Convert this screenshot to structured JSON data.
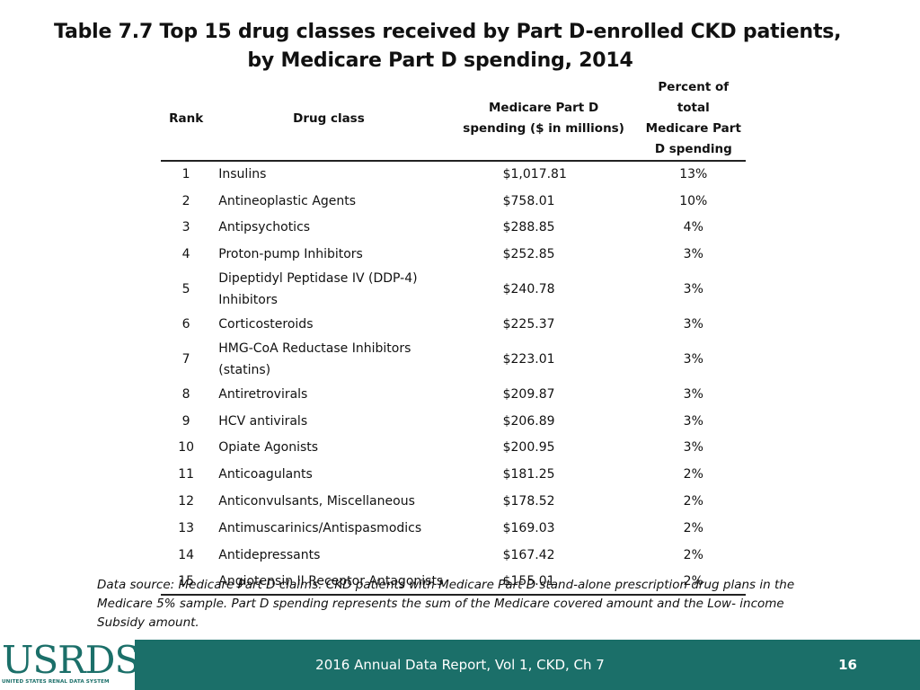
{
  "title": {
    "line1": "Table 7.7  Top 15 drug classes received by Part D-enrolled CKD patients,",
    "line2": "by Medicare Part D spending, 2014"
  },
  "table": {
    "headers": {
      "rank": "Rank",
      "drug_class": "Drug class",
      "spending_line1": "Medicare Part D",
      "spending_line2": "spending ($ in millions)",
      "percent_line1": "Percent of total",
      "percent_line2": "Medicare Part",
      "percent_line3": "D spending"
    },
    "rows": [
      {
        "rank": "1",
        "drug": "Insulins",
        "drug2": "",
        "spending": "$1,017.81",
        "percent": "13%"
      },
      {
        "rank": "2",
        "drug": "Antineoplastic Agents",
        "drug2": "",
        "spending": "$758.01",
        "percent": "10%"
      },
      {
        "rank": "3",
        "drug": "Antipsychotics",
        "drug2": "",
        "spending": "$288.85",
        "percent": "4%"
      },
      {
        "rank": "4",
        "drug": "Proton-pump Inhibitors",
        "drug2": "",
        "spending": "$252.85",
        "percent": "3%"
      },
      {
        "rank": "5",
        "drug": "Dipeptidyl Peptidase IV (DDP-4)",
        "drug2": "Inhibitors",
        "spending": "$240.78",
        "percent": "3%"
      },
      {
        "rank": "6",
        "drug": "Corticosteroids",
        "drug2": "",
        "spending": "$225.37",
        "percent": "3%"
      },
      {
        "rank": "7",
        "drug": "HMG-CoA Reductase Inhibitors",
        "drug2": "(statins)",
        "spending": "$223.01",
        "percent": "3%"
      },
      {
        "rank": "8",
        "drug": "Antiretrovirals",
        "drug2": "",
        "spending": "$209.87",
        "percent": "3%"
      },
      {
        "rank": "9",
        "drug": "HCV antivirals",
        "drug2": "",
        "spending": "$206.89",
        "percent": "3%"
      },
      {
        "rank": "10",
        "drug": "Opiate Agonists",
        "drug2": "",
        "spending": "$200.95",
        "percent": "3%"
      },
      {
        "rank": "11",
        "drug": "Anticoagulants",
        "drug2": "",
        "spending": "$181.25",
        "percent": "2%"
      },
      {
        "rank": "12",
        "drug": "Anticonvulsants, Miscellaneous",
        "drug2": "",
        "spending": "$178.52",
        "percent": "2%"
      },
      {
        "rank": "13",
        "drug": "Antimuscarinics/Antispasmodics",
        "drug2": "",
        "spending": "$169.03",
        "percent": "2%"
      },
      {
        "rank": "14",
        "drug": "Antidepressants",
        "drug2": "",
        "spending": "$167.42",
        "percent": "2%"
      },
      {
        "rank": "15",
        "drug": "Angiotensin II Receptor Antagonists",
        "drug2": "",
        "spending": "$155.01",
        "percent": "2%"
      }
    ]
  },
  "note": "Data source: Medicare Part D claims. CKD patients with Medicare Part D stand-alone prescription drug plans in the Medicare 5% sample. Part D spending represents the sum of the Medicare covered amount and the Low- income Subsidy amount.",
  "footer": {
    "logo_text": "USRDS",
    "logo_subtext": "UNITED STATES RENAL DATA SYSTEM",
    "center_text": "2016 Annual Data Report, Vol 1, CKD, Ch 7",
    "page_number": "16"
  },
  "colors": {
    "footer_background": "#1b6f69",
    "footer_text": "#ffffff"
  }
}
